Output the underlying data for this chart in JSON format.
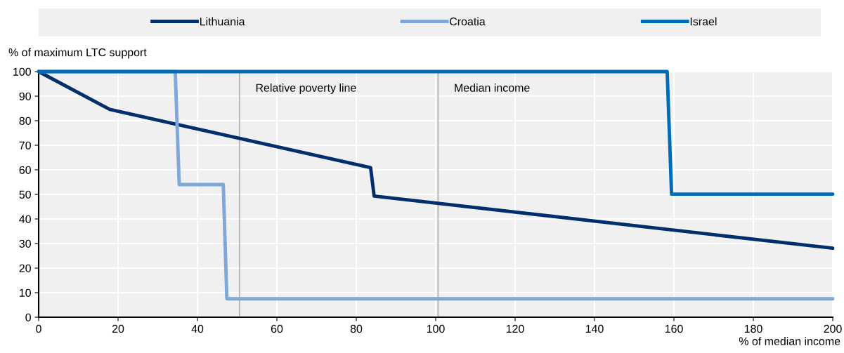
{
  "chart_data": {
    "type": "line",
    "ylabel": "% of maximum LTC support",
    "xlabel": "% of median income",
    "xlim": [
      0,
      200
    ],
    "xticks": [
      0,
      20,
      40,
      60,
      80,
      100,
      120,
      140,
      160,
      180,
      200
    ],
    "ylim": [
      0,
      100
    ],
    "yticks": [
      0,
      10,
      20,
      30,
      40,
      50,
      60,
      70,
      80,
      90,
      100
    ],
    "grid": true,
    "legend": "top",
    "marker": "none",
    "line_style": "solid",
    "series": [
      {
        "name": "Lithuania",
        "color": "#002f6c",
        "x": [
          0,
          17.9,
          83.6,
          84.5,
          200
        ],
        "values": [
          100,
          84.6,
          60.9,
          49.3,
          28.1
        ]
      },
      {
        "name": "Croatia",
        "color": "#7fa8d9",
        "x": [
          0,
          34.4,
          35.4,
          46.5,
          47.4,
          200
        ],
        "values": [
          100,
          100,
          54,
          54,
          7.5,
          7.5
        ]
      },
      {
        "name": "Israel",
        "color": "#006bb6",
        "x": [
          0,
          158.3,
          159.4,
          200
        ],
        "values": [
          100,
          100,
          50.1,
          50.1
        ]
      }
    ],
    "ref_lines": [
      {
        "axis": "x",
        "value": 50.6,
        "label": "Relative poverty line",
        "color": "#b3b3b3"
      },
      {
        "axis": "x",
        "value": 100.6,
        "label": "Median income",
        "color": "#b3b3b3"
      }
    ]
  }
}
